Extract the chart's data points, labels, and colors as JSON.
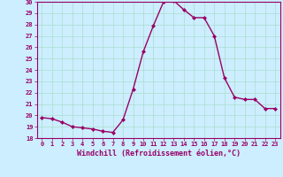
{
  "x": [
    0,
    1,
    2,
    3,
    4,
    5,
    6,
    7,
    8,
    9,
    10,
    11,
    12,
    13,
    14,
    15,
    16,
    17,
    18,
    19,
    20,
    21,
    22,
    23
  ],
  "y": [
    19.8,
    19.7,
    19.4,
    19.0,
    18.9,
    18.8,
    18.6,
    18.5,
    19.6,
    22.3,
    25.6,
    27.9,
    30.0,
    30.1,
    29.3,
    28.6,
    28.6,
    27.0,
    23.3,
    21.6,
    21.4,
    21.4,
    20.6,
    20.6
  ],
  "line_color": "#990066",
  "marker": "D",
  "marker_size": 2,
  "background_color": "#cceeff",
  "grid_color": "#aaddcc",
  "xlabel": "Windchill (Refroidissement éolien,°C)",
  "xlabel_color": "#990066",
  "tick_color": "#990066",
  "ylim": [
    18,
    30
  ],
  "xlim": [
    -0.5,
    23.5
  ],
  "yticks": [
    18,
    19,
    20,
    21,
    22,
    23,
    24,
    25,
    26,
    27,
    28,
    29,
    30
  ],
  "xticks": [
    0,
    1,
    2,
    3,
    4,
    5,
    6,
    7,
    8,
    9,
    10,
    11,
    12,
    13,
    14,
    15,
    16,
    17,
    18,
    19,
    20,
    21,
    22,
    23
  ],
  "line_width": 1.0,
  "font_size_ticks": 5.0,
  "font_size_xlabel": 6.0,
  "font_family": "monospace"
}
